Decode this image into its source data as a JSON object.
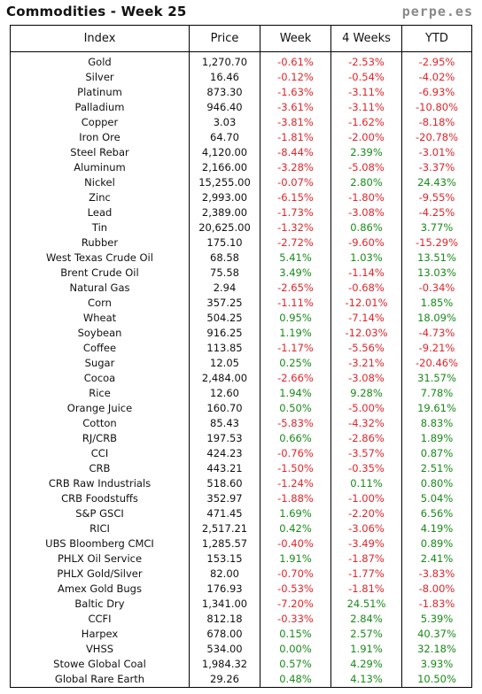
{
  "header": {
    "title": "Commodities - Week 25",
    "brand": "perpe.es"
  },
  "table": {
    "columns": [
      "Index",
      "Price",
      "Week",
      "4 Weeks",
      "YTD"
    ],
    "rows": [
      {
        "index": "Gold",
        "price": "1,270.70",
        "week": "-0.61%",
        "four_weeks": "-2.53%",
        "ytd": "-2.95%"
      },
      {
        "index": "Silver",
        "price": "16.46",
        "week": "-0.12%",
        "four_weeks": "-0.54%",
        "ytd": "-4.02%"
      },
      {
        "index": "Platinum",
        "price": "873.30",
        "week": "-1.63%",
        "four_weeks": "-3.11%",
        "ytd": "-6.93%"
      },
      {
        "index": "Palladium",
        "price": "946.40",
        "week": "-3.61%",
        "four_weeks": "-3.11%",
        "ytd": "-10.80%"
      },
      {
        "index": "Copper",
        "price": "3.03",
        "week": "-3.81%",
        "four_weeks": "-1.62%",
        "ytd": "-8.18%"
      },
      {
        "index": "Iron Ore",
        "price": "64.70",
        "week": "-1.81%",
        "four_weeks": "-2.00%",
        "ytd": "-20.78%"
      },
      {
        "index": "Steel Rebar",
        "price": "4,120.00",
        "week": "-8.44%",
        "four_weeks": "2.39%",
        "ytd": "-3.01%"
      },
      {
        "index": "Aluminum",
        "price": "2,166.00",
        "week": "-3.28%",
        "four_weeks": "-5.08%",
        "ytd": "-3.37%"
      },
      {
        "index": "Nickel",
        "price": "15,255.00",
        "week": "-0.07%",
        "four_weeks": "2.80%",
        "ytd": "24.43%"
      },
      {
        "index": "Zinc",
        "price": "2,993.00",
        "week": "-6.15%",
        "four_weeks": "-1.80%",
        "ytd": "-9.55%"
      },
      {
        "index": "Lead",
        "price": "2,389.00",
        "week": "-1.73%",
        "four_weeks": "-3.08%",
        "ytd": "-4.25%"
      },
      {
        "index": "Tin",
        "price": "20,625.00",
        "week": "-1.32%",
        "four_weeks": "0.86%",
        "ytd": "3.77%"
      },
      {
        "index": "Rubber",
        "price": "175.10",
        "week": "-2.72%",
        "four_weeks": "-9.60%",
        "ytd": "-15.29%"
      },
      {
        "index": "West Texas Crude Oil",
        "price": "68.58",
        "week": "5.41%",
        "four_weeks": "1.03%",
        "ytd": "13.51%"
      },
      {
        "index": "Brent Crude Oil",
        "price": "75.58",
        "week": "3.49%",
        "four_weeks": "-1.14%",
        "ytd": "13.03%"
      },
      {
        "index": "Natural Gas",
        "price": "2.94",
        "week": "-2.65%",
        "four_weeks": "-0.68%",
        "ytd": "-0.34%"
      },
      {
        "index": "Corn",
        "price": "357.25",
        "week": "-1.11%",
        "four_weeks": "-12.01%",
        "ytd": "1.85%"
      },
      {
        "index": "Wheat",
        "price": "504.25",
        "week": "0.95%",
        "four_weeks": "-7.14%",
        "ytd": "18.09%"
      },
      {
        "index": "Soybean",
        "price": "916.25",
        "week": "1.19%",
        "four_weeks": "-12.03%",
        "ytd": "-4.73%"
      },
      {
        "index": "Coffee",
        "price": "113.85",
        "week": "-1.17%",
        "four_weeks": "-5.56%",
        "ytd": "-9.21%"
      },
      {
        "index": "Sugar",
        "price": "12.05",
        "week": "0.25%",
        "four_weeks": "-3.21%",
        "ytd": "-20.46%"
      },
      {
        "index": "Cocoa",
        "price": "2,484.00",
        "week": "-2.66%",
        "four_weeks": "-3.08%",
        "ytd": "31.57%"
      },
      {
        "index": "Rice",
        "price": "12.60",
        "week": "1.94%",
        "four_weeks": "9.28%",
        "ytd": "7.78%"
      },
      {
        "index": "Orange Juice",
        "price": "160.70",
        "week": "0.50%",
        "four_weeks": "-5.00%",
        "ytd": "19.61%"
      },
      {
        "index": "Cotton",
        "price": "85.43",
        "week": "-5.83%",
        "four_weeks": "-4.32%",
        "ytd": "8.83%"
      },
      {
        "index": "RJ/CRB",
        "price": "197.53",
        "week": "0.66%",
        "four_weeks": "-2.86%",
        "ytd": "1.89%"
      },
      {
        "index": "CCI",
        "price": "424.23",
        "week": "-0.76%",
        "four_weeks": "-3.57%",
        "ytd": "0.87%"
      },
      {
        "index": "CRB",
        "price": "443.21",
        "week": "-1.50%",
        "four_weeks": "-0.35%",
        "ytd": "2.51%"
      },
      {
        "index": "CRB Raw Industrials",
        "price": "518.60",
        "week": "-1.24%",
        "four_weeks": "0.11%",
        "ytd": "0.80%"
      },
      {
        "index": "CRB Foodstuffs",
        "price": "352.97",
        "week": "-1.88%",
        "four_weeks": "-1.00%",
        "ytd": "5.04%"
      },
      {
        "index": "S&P GSCI",
        "price": "471.45",
        "week": "1.69%",
        "four_weeks": "-2.20%",
        "ytd": "6.56%"
      },
      {
        "index": "RICI",
        "price": "2,517.21",
        "week": "0.42%",
        "four_weeks": "-3.06%",
        "ytd": "4.19%"
      },
      {
        "index": "UBS Bloomberg CMCI",
        "price": "1,285.57",
        "week": "-0.40%",
        "four_weeks": "-3.49%",
        "ytd": "0.89%"
      },
      {
        "index": "PHLX Oil Service",
        "price": "153.15",
        "week": "1.91%",
        "four_weeks": "-1.87%",
        "ytd": "2.41%"
      },
      {
        "index": "PHLX Gold/Silver",
        "price": "82.00",
        "week": "-0.70%",
        "four_weeks": "-1.77%",
        "ytd": "-3.83%"
      },
      {
        "index": "Amex Gold Bugs",
        "price": "176.93",
        "week": "-0.53%",
        "four_weeks": "-1.81%",
        "ytd": "-8.00%"
      },
      {
        "index": "Baltic Dry",
        "price": "1,341.00",
        "week": "-7.20%",
        "four_weeks": "24.51%",
        "ytd": "-1.83%"
      },
      {
        "index": "CCFI",
        "price": "812.18",
        "week": "-0.33%",
        "four_weeks": "2.84%",
        "ytd": "5.39%"
      },
      {
        "index": "Harpex",
        "price": "678.00",
        "week": "0.15%",
        "four_weeks": "2.57%",
        "ytd": "40.37%"
      },
      {
        "index": "VHSS",
        "price": "534.00",
        "week": "0.00%",
        "four_weeks": "1.91%",
        "ytd": "32.18%"
      },
      {
        "index": "Stowe Global Coal",
        "price": "1,984.32",
        "week": "0.57%",
        "four_weeks": "4.29%",
        "ytd": "3.93%"
      },
      {
        "index": "Global Rare Earth",
        "price": "29.26",
        "week": "0.48%",
        "four_weeks": "4.13%",
        "ytd": "10.50%"
      }
    ]
  },
  "colors": {
    "negative": "#e0262b",
    "positive": "#1a8a1a",
    "brand": "#8a8a8a"
  }
}
